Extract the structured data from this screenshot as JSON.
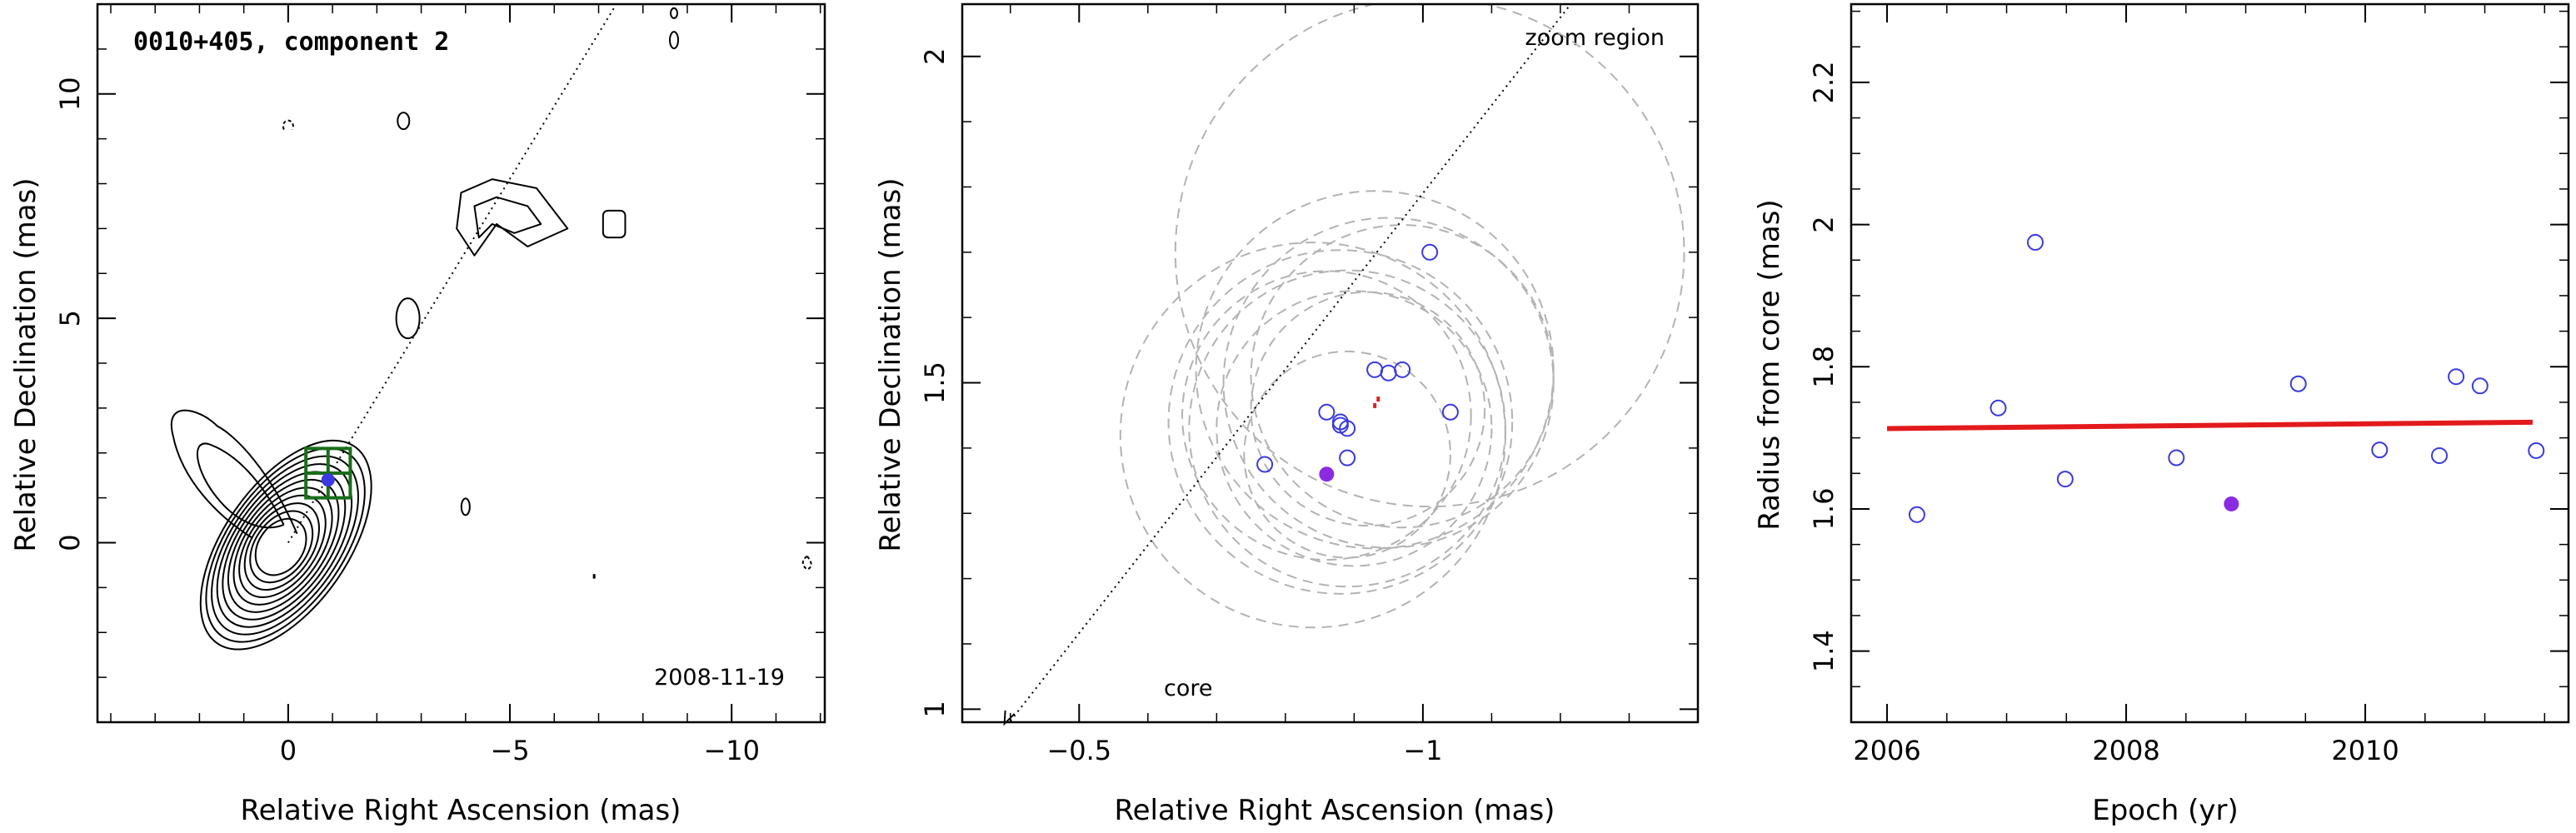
{
  "chart_data": [
    {
      "type": "scatter",
      "panel": "contour-map",
      "title": "0010+405, component 2",
      "date": "2008-11-19",
      "xlabel": "Relative Right Ascension (mas)",
      "ylabel": "Relative Declination (mas)",
      "xlim": [
        4.3,
        -12.1
      ],
      "ylim": [
        -4,
        12
      ],
      "xticks": [
        0,
        -5,
        -10
      ],
      "xtick_labels": [
        "0",
        "−5",
        "−10"
      ],
      "yticks": [
        0,
        5,
        10
      ],
      "ytick_labels": [
        "0",
        "5",
        "10"
      ],
      "jet_direction_line": {
        "x": [
          0,
          -7.4
        ],
        "y": [
          0,
          12
        ]
      },
      "zoom_box": {
        "x": [
          -0.4,
          -1.4
        ],
        "y": [
          1.0,
          2.1
        ]
      },
      "component_position": {
        "x": -0.9,
        "y": 1.4
      },
      "colors": {
        "contour": "#000000",
        "zoom_box": "#1a6e1a",
        "component": "#3a3ae0"
      }
    },
    {
      "type": "scatter",
      "panel": "zoom-region",
      "annotations": [
        "zoom region",
        "core"
      ],
      "xlabel": "Relative Right Ascension (mas)",
      "ylabel": "Relative Declination (mas)",
      "xlim": [
        -0.33,
        -1.4
      ],
      "ylim": [
        0.98,
        2.08
      ],
      "xticks": [
        -0.5,
        -1
      ],
      "xtick_labels": [
        "−0.5",
        "−1"
      ],
      "yticks": [
        1,
        1.5,
        2
      ],
      "ytick_labels": [
        "1",
        "1.5",
        "2"
      ],
      "series": [
        {
          "points": [
            {
              "x": -1.01,
              "y": 1.7
            },
            {
              "x": -0.93,
              "y": 1.52
            },
            {
              "x": -0.95,
              "y": 1.515
            },
            {
              "x": -0.97,
              "y": 1.52
            },
            {
              "x": -0.86,
              "y": 1.455
            },
            {
              "x": -0.88,
              "y": 1.44
            },
            {
              "x": -0.89,
              "y": 1.43
            },
            {
              "x": -0.88,
              "y": 1.435
            },
            {
              "x": -1.04,
              "y": 1.455
            },
            {
              "x": -0.89,
              "y": 1.385
            },
            {
              "x": -0.77,
              "y": 1.375
            }
          ]
        }
      ],
      "highlight_point": {
        "x": -0.86,
        "y": 1.36
      },
      "mean_positions": [
        {
          "x": -0.93,
          "y": 1.465
        },
        {
          "x": -0.935,
          "y": 1.475
        }
      ],
      "circles": [
        {
          "x": -1.01,
          "y": 1.7,
          "r": 0.37
        },
        {
          "x": -0.93,
          "y": 1.52,
          "r": 0.26
        },
        {
          "x": -0.95,
          "y": 1.5,
          "r": 0.24
        },
        {
          "x": -0.97,
          "y": 1.51,
          "r": 0.22
        },
        {
          "x": -0.88,
          "y": 1.44,
          "r": 0.25
        },
        {
          "x": -0.89,
          "y": 1.43,
          "r": 0.23
        },
        {
          "x": -0.9,
          "y": 1.43,
          "r": 0.2
        },
        {
          "x": -0.86,
          "y": 1.45,
          "r": 0.21
        },
        {
          "x": -0.92,
          "y": 1.46,
          "r": 0.17
        },
        {
          "x": -0.89,
          "y": 1.39,
          "r": 0.15
        },
        {
          "x": -0.84,
          "y": 1.42,
          "r": 0.28
        }
      ],
      "jet_direction_line": {
        "x": [
          -0.395,
          -1.215
        ],
        "y": [
          0.975,
          2.08
        ]
      },
      "colors": {
        "points": "#3a3ae0",
        "highlight": "#8a2be2",
        "circles": "#b3b3b3",
        "mean": "#e02020"
      }
    },
    {
      "type": "scatter",
      "panel": "radius-vs-epoch",
      "xlabel": "Epoch (yr)",
      "ylabel": "Radius from core (mas)",
      "xlim": [
        2005.7,
        2011.7
      ],
      "ylim": [
        1.3,
        2.31
      ],
      "xticks": [
        2006,
        2008,
        2010
      ],
      "xtick_labels": [
        "2006",
        "2008",
        "2010"
      ],
      "yticks": [
        1.4,
        1.6,
        1.8,
        2.0,
        2.2
      ],
      "ytick_labels": [
        "1.4",
        "1.6",
        "1.8",
        "2",
        "2.2"
      ],
      "x": [
        2006.25,
        2006.93,
        2007.24,
        2007.49,
        2008.42,
        2009.44,
        2010.12,
        2010.62,
        2010.76,
        2010.96,
        2011.43
      ],
      "y": [
        1.592,
        1.742,
        1.975,
        1.642,
        1.672,
        1.776,
        1.683,
        1.675,
        1.786,
        1.773,
        1.682
      ],
      "highlight_point": {
        "x": 2008.88,
        "y": 1.607
      },
      "fit_line": {
        "x": [
          2006.0,
          2011.4
        ],
        "y": [
          1.713,
          1.722
        ]
      },
      "colors": {
        "points": "#3a3ae0",
        "highlight": "#8a2be2",
        "fit": "#e31a1c"
      }
    }
  ]
}
